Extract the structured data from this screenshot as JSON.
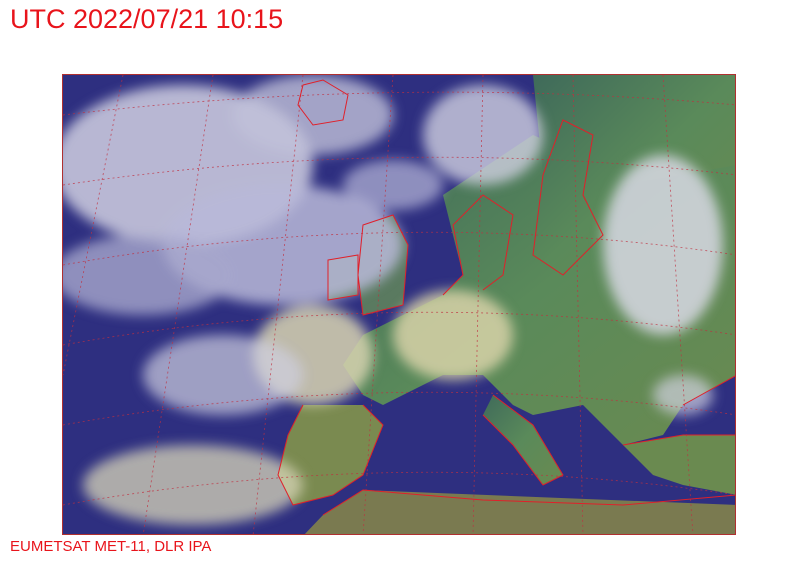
{
  "title": "UTC 2022/07/21 10:15",
  "credit": "EUMETSAT MET-11, DLR IPA",
  "map": {
    "type": "satellite-image",
    "region": "Europe",
    "colors": {
      "sea": "#2e2f80",
      "land": "#4f7a58",
      "cloud": "#d8d6e8",
      "cloud_yellow": "#d9d2a0",
      "coastline": "#e0202a",
      "graticule": "#c03040"
    }
  }
}
